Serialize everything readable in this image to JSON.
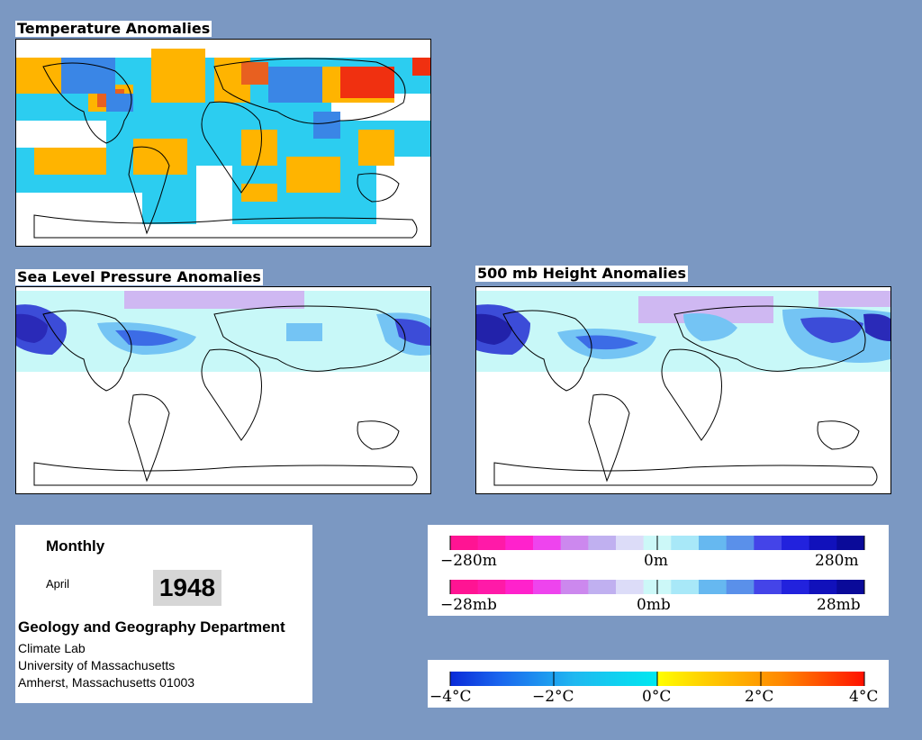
{
  "panels": {
    "temperature": {
      "title": "Temperature Anomalies"
    },
    "slp": {
      "title": "Sea Level Pressure Anomalies"
    },
    "height": {
      "title": "500 mb Height Anomalies"
    }
  },
  "info": {
    "mode": "Monthly",
    "month": "April",
    "year": "1948",
    "department": "Geology and Geography Department",
    "lines": [
      "Climate Lab",
      "University of Massachusetts",
      "Amherst, Massachusetts 01003"
    ]
  },
  "legends": {
    "height": {
      "labels": [
        "−280m",
        "0m",
        "280m"
      ],
      "colors": [
        "#ff1493",
        "#ff1aa8",
        "#ff22cc",
        "#ee44ee",
        "#cc88ee",
        "#c0b0f0",
        "#dcdcf8",
        "#ccf8f8",
        "#a8e8f8",
        "#66b8f0",
        "#5a90ea",
        "#4444e8",
        "#2222dd",
        "#1111bb",
        "#0a0a99"
      ]
    },
    "slp": {
      "labels": [
        "−28mb",
        "0mb",
        "28mb"
      ],
      "colors": [
        "#ff1493",
        "#ff1aa8",
        "#ff22cc",
        "#ee44ee",
        "#cc88ee",
        "#c0b0f0",
        "#dcdcf8",
        "#ccf8f8",
        "#a8e8f8",
        "#66b8f0",
        "#5a90ea",
        "#4444e8",
        "#2222dd",
        "#1111bb",
        "#0a0a99"
      ]
    },
    "temperature": {
      "labels": [
        "−4°C",
        "−2°C",
        "0°C",
        "2°C",
        "4°C"
      ],
      "colors": {
        "cold_extreme": "#0a2ad8",
        "cold": "#1a66ee",
        "cool": "#20b8f0",
        "neutral_cold": "#00e8f0",
        "neutral_warm": "#ffff00",
        "warm": "#ffcc00",
        "hot": "#ff8800",
        "hot_extreme": "#ff1100"
      }
    }
  },
  "colors": {
    "page_background": "#7b98c2",
    "temp_warm": "#ffb400",
    "temp_cool": "#2ccdf0",
    "temp_hot": "#f03010",
    "temp_cold": "#3a86e6",
    "anom_light": "#c8f8f8",
    "anom_mid": "#74c4f4",
    "anom_deep": "#3c4cd8",
    "anom_neg": "#cfb8f2"
  }
}
